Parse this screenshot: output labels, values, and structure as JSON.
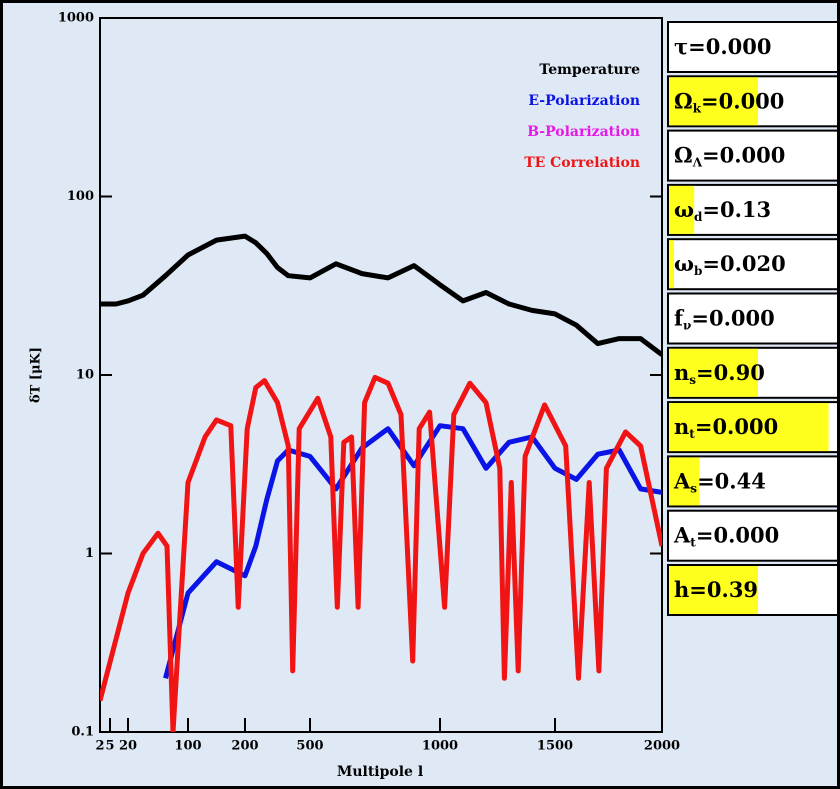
{
  "chart_data": {
    "type": "line",
    "ylabel": "δT [μK]",
    "xlabel": "Multipole l",
    "log_y": true,
    "ylim": [
      0.1,
      1000
    ],
    "yticks": [
      0.1,
      1,
      10,
      100,
      1000
    ],
    "xlim": [
      2,
      2000
    ],
    "xticks": [
      2,
      5,
      20,
      100,
      200,
      500,
      1000,
      1500,
      2000
    ],
    "legend": "upper right",
    "series": [
      {
        "name": "Temperature",
        "color": "#000000",
        "x": [
          2,
          5,
          10,
          20,
          40,
          70,
          100,
          150,
          200,
          250,
          300,
          350,
          400,
          500,
          600,
          700,
          800,
          900,
          1000,
          1100,
          1200,
          1300,
          1400,
          1500,
          1600,
          1700,
          1800,
          1900,
          2000
        ],
        "values": [
          25,
          25,
          25,
          26,
          28,
          36,
          47,
          57,
          60,
          55,
          48,
          40,
          36,
          35,
          42,
          37,
          35,
          41,
          32,
          26,
          29,
          25,
          23,
          22,
          19,
          15,
          16,
          16,
          13
        ]
      },
      {
        "name": "E-Polarization",
        "color": "#0a14e6",
        "x": [
          70,
          100,
          150,
          200,
          250,
          300,
          350,
          400,
          500,
          600,
          700,
          800,
          900,
          1000,
          1100,
          1200,
          1300,
          1400,
          1500,
          1600,
          1700,
          1800,
          1900,
          2000
        ],
        "values": [
          0.2,
          0.6,
          0.9,
          0.75,
          1.1,
          2,
          3.3,
          3.8,
          3.5,
          2.3,
          3.9,
          5,
          3.1,
          5.2,
          5,
          3,
          4.2,
          4.5,
          3,
          2.6,
          3.6,
          3.8,
          2.3,
          2.2
        ]
      },
      {
        "name": "B-Polarization",
        "color": "#e619e6",
        "x": [],
        "values": []
      },
      {
        "name": "TE Correlation",
        "color": "#f01414",
        "x": [
          2,
          20,
          40,
          60,
          72,
          80,
          100,
          130,
          150,
          175,
          188,
          210,
          250,
          290,
          350,
          400,
          420,
          450,
          530,
          580,
          605,
          630,
          660,
          685,
          710,
          750,
          800,
          850,
          895,
          920,
          960,
          1020,
          1060,
          1130,
          1200,
          1260,
          1280,
          1310,
          1340,
          1370,
          1455,
          1550,
          1610,
          1660,
          1705,
          1740,
          1830,
          1900,
          2000
        ],
        "values": [
          0.15,
          0.6,
          1.0,
          1.3,
          1.1,
          0.1,
          2.5,
          4.5,
          5.6,
          5.2,
          0.5,
          5,
          8.5,
          9.3,
          7,
          4,
          0.22,
          5,
          7.4,
          4.5,
          0.5,
          4.2,
          4.5,
          0.5,
          7,
          9.7,
          9,
          6,
          0.25,
          5,
          6.2,
          0.5,
          6,
          9,
          7,
          3,
          0.2,
          2.5,
          0.22,
          3.5,
          6.8,
          4,
          0.2,
          2.5,
          0.22,
          3,
          4.8,
          4,
          1.1
        ]
      }
    ]
  },
  "parameters": [
    {
      "symbol": "τ",
      "relation": "=",
      "value": "0.000",
      "slider": 0
    },
    {
      "symbol": "Ω",
      "subscript": "k",
      "relation": "=",
      "value": "0.000",
      "slider": 0.53
    },
    {
      "symbol": "Ω",
      "subscript": "Λ",
      "relation": "=",
      "value": "0.000",
      "slider": 0
    },
    {
      "symbol": "ω",
      "subscript": "d",
      "relation": "=",
      "value": "0.13",
      "slider": 0.15
    },
    {
      "symbol": "ω",
      "subscript": "b",
      "relation": "=",
      "value": "0.020",
      "slider": 0.03
    },
    {
      "symbol": "f",
      "subscript": "ν",
      "relation": "=",
      "value": "0.000",
      "slider": 0
    },
    {
      "symbol": "n",
      "subscript": "s",
      "relation": "=",
      "value": "0.90",
      "slider": 0.53
    },
    {
      "symbol": "n",
      "subscript": "t",
      "relation": "=",
      "value": "0.000",
      "slider": 0.95
    },
    {
      "symbol": "A",
      "subscript": "s",
      "relation": "=",
      "value": "0.44",
      "slider": 0.18
    },
    {
      "symbol": "A",
      "subscript": "t",
      "relation": "=",
      "value": "0.000",
      "slider": 0
    },
    {
      "symbol": "h",
      "relation": "=",
      "value": "0.39",
      "slider": 0.53
    }
  ]
}
